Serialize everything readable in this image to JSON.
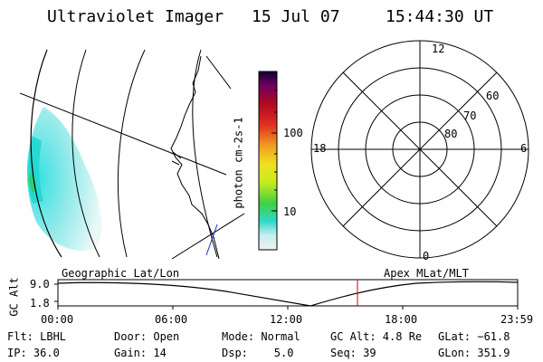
{
  "header": {
    "title": "Ultraviolet Imager",
    "date": "15 Jul 07",
    "time": "15:44:30 UT"
  },
  "colorbar": {
    "unit_label": "photon cm-2s-1",
    "ticks": [
      "100",
      "10"
    ]
  },
  "polar_plot": {
    "mlt_labels": [
      "12",
      "18",
      "6",
      "0"
    ],
    "lat_labels": [
      "60",
      "70",
      "80"
    ]
  },
  "timeline": {
    "left_label": "Geographic Lat/Lon",
    "right_label": "Apex MLat/MLT",
    "y_axis_label": "GC Alt",
    "y_ticks": [
      "9.0",
      "1.8"
    ],
    "x_ticks": [
      "00:00",
      "06:00",
      "12:00",
      "18:00",
      "23:59"
    ],
    "marker_color": "#dd0000"
  },
  "footer": {
    "filter": "Flt: LBHL",
    "door": "Door: Open",
    "mode": "Mode: Normal",
    "gc_alt": "GC Alt: 4.8 Re",
    "glat": "GLat: −61.8",
    "ip": "IP: 36.0",
    "gain": "Gain: 14",
    "dsp": "Dsp:    5.0",
    "seq": "Seq: 39",
    "glon": "GLon: 351.9"
  }
}
